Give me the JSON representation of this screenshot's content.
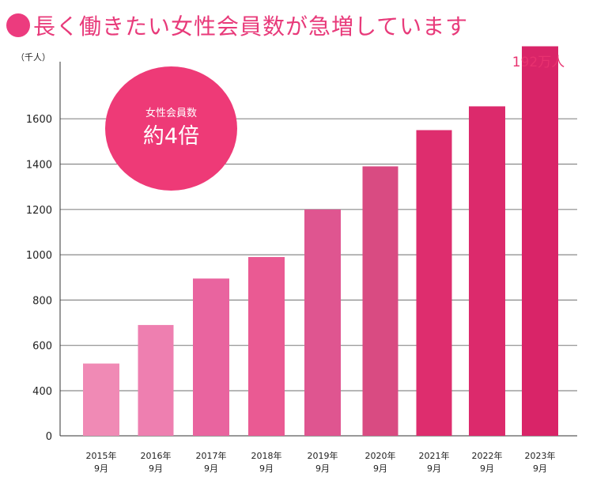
{
  "header": {
    "title": "長く働きたい女性会員数が急増しています"
  },
  "badge": {
    "subtitle": "女性会員数",
    "headline": "約4倍"
  },
  "chart_data": {
    "type": "bar",
    "unit_label": "（千人）",
    "categories": [
      [
        "2015年",
        "9月"
      ],
      [
        "2016年",
        "9月"
      ],
      [
        "2017年",
        "9月"
      ],
      [
        "2018年",
        "9月"
      ],
      [
        "2019年",
        "9月"
      ],
      [
        "2020年",
        "9月"
      ],
      [
        "2021年",
        "9月"
      ],
      [
        "2022年",
        "9月"
      ],
      [
        "2023年",
        "9月"
      ]
    ],
    "values": [
      520,
      690,
      895,
      990,
      1200,
      1390,
      1550,
      1655,
      1920
    ],
    "top_label": "192万人",
    "yticks": [
      0,
      400,
      600,
      800,
      1000,
      1200,
      1400,
      1600
    ],
    "grid": true,
    "colors": [
      "#f08ab5",
      "#ee7fb0",
      "#e9649f",
      "#ea5a93",
      "#df5590",
      "#d94b82",
      "#de2d6e",
      "#dc2a6c",
      "#d92468"
    ]
  }
}
